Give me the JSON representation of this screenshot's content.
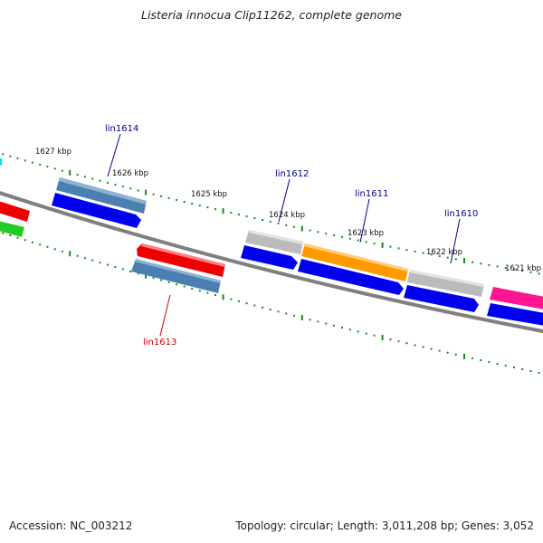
{
  "title": "Listeria innocua Clip11262, complete genome",
  "footer": {
    "accession": "Accession: NC_003212",
    "summary": "Topology: circular; Length: 3,011,208 bp; Genes: 3,052"
  },
  "ticks": [
    "1627 kbp",
    "1626 kbp",
    "1625 kbp",
    "1624 kbp",
    "1623 kbp",
    "1622 kbp",
    "1621 kbp"
  ],
  "gene_labels": {
    "lin1614": "lin1614",
    "lin1613": "lin1613",
    "lin1612": "lin1612",
    "lin1611": "lin1611",
    "lin1610": "lin1610"
  },
  "colors": {
    "backbone": "#808080",
    "tick_dots": "#1a8a1a",
    "label_forward": "#00008b",
    "label_reverse": "#cc0000",
    "cds": "#0000ee",
    "steelblue": "#4a7fb0",
    "red": "#ee0000",
    "green": "#22cc22",
    "gray": "#bbbbbb",
    "orange": "#ff9900",
    "magenta": "#ff1493",
    "cyan": "#00e5e5"
  }
}
